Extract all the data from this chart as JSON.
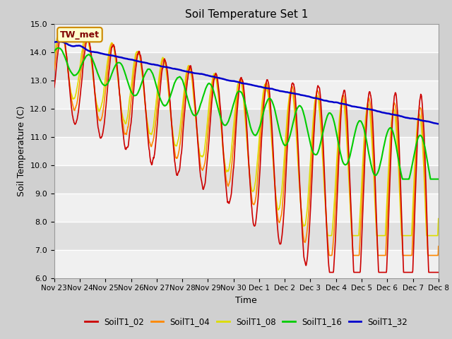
{
  "title": "Soil Temperature Set 1",
  "xlabel": "Time",
  "ylabel": "Soil Temperature (C)",
  "ylim": [
    6.0,
    15.0
  ],
  "yticks": [
    6.0,
    7.0,
    8.0,
    9.0,
    10.0,
    11.0,
    12.0,
    13.0,
    14.0,
    15.0
  ],
  "xtick_labels": [
    "Nov 23",
    "Nov 24",
    "Nov 25",
    "Nov 26",
    "Nov 27",
    "Nov 28",
    "Nov 29",
    "Nov 30",
    "Dec 1",
    "Dec 2",
    "Dec 3",
    "Dec 4",
    "Dec 5",
    "Dec 6",
    "Dec 7",
    "Dec 8"
  ],
  "colors": {
    "SoilT1_02": "#cc0000",
    "SoilT1_04": "#ff8800",
    "SoilT1_08": "#dddd00",
    "SoilT1_16": "#00cc00",
    "SoilT1_32": "#0000cc"
  },
  "annotation_text": "TW_met",
  "annotation_box_color": "#ffffcc",
  "annotation_text_color": "#800000",
  "band_colors": [
    "#f0f0f0",
    "#e0e0e0"
  ]
}
